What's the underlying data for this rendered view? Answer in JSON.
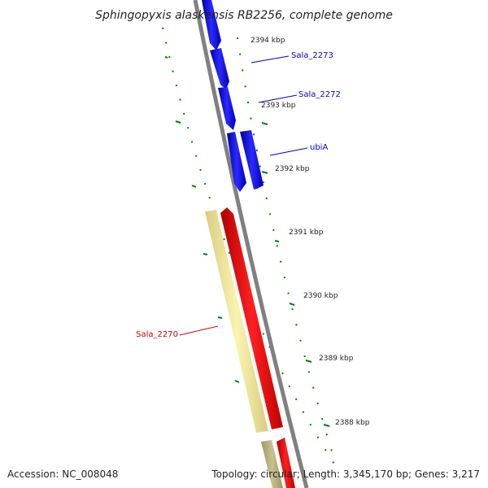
{
  "title": "Sphingopyxis alaskensis RB2256, complete genome",
  "footer": {
    "accession": "Accession: NC_008048",
    "topology": "Topology: circular; Length: 3,345,170 bp; Genes: 3,217"
  },
  "colors": {
    "forward_gene": "#0000ee",
    "reverse_gene": "#ee0000",
    "rrna_feature": "#f0e68c",
    "backbone": "#808080",
    "gc_ticks": "#008000",
    "forward_label": "#0000cc",
    "reverse_label": "#cc0000"
  },
  "scale_ticks": [
    "2394 kbp",
    "2393 kbp",
    "2392 kbp",
    "2391 kbp",
    "2390 kbp",
    "2389 kbp",
    "2388 kbp"
  ],
  "gene_labels": [
    {
      "text": "Sala_2273",
      "strand": "forward"
    },
    {
      "text": "Sala_2272",
      "strand": "forward"
    },
    {
      "text": "ubiA",
      "strand": "forward"
    },
    {
      "text": "Sala_2270",
      "strand": "reverse"
    }
  ]
}
